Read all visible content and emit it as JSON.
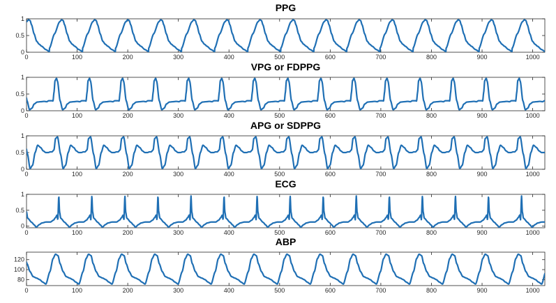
{
  "chart_data": [
    {
      "type": "line",
      "title": "PPG",
      "xlim": [
        0,
        1024
      ],
      "ylim": [
        0,
        1
      ],
      "xticks": [
        0,
        100,
        200,
        300,
        400,
        500,
        600,
        700,
        800,
        900,
        1000
      ],
      "yticks": [
        0,
        0.5,
        1
      ],
      "yticklabels": [
        "0",
        "0.5",
        "1"
      ],
      "series": [
        {
          "period": 65.3,
          "phase": 20,
          "x": [
            0,
            10,
            20,
            24,
            27,
            30,
            35,
            40,
            45,
            50,
            58,
            65.3
          ],
          "y": [
            0.12,
            0.55,
            0.91,
            0.97,
            0.95,
            0.82,
            0.55,
            0.33,
            0.24,
            0.18,
            0.08,
            0.02
          ]
        }
      ],
      "color": "#1f6fb4"
    },
    {
      "type": "line",
      "title": "VPG or FDPPG",
      "xlim": [
        0,
        1024
      ],
      "ylim": [
        0,
        1
      ],
      "xticks": [
        0,
        100,
        200,
        300,
        400,
        500,
        600,
        700,
        800,
        900,
        1000
      ],
      "yticks": [
        0,
        0.5,
        1
      ],
      "yticklabels": [
        "0",
        "0.5",
        "1"
      ],
      "series": [
        {
          "period": 65.3,
          "phase": 18,
          "x": [
            0,
            3,
            5,
            7,
            9,
            12,
            14,
            19,
            24,
            29,
            33,
            39,
            46,
            53,
            58,
            62,
            65.3
          ],
          "y": [
            0.3,
            0.3,
            0.29,
            0.55,
            0.9,
            0.97,
            0.88,
            0.3,
            0.03,
            0.08,
            0.2,
            0.26,
            0.27,
            0.28,
            0.27,
            0.3,
            0.3
          ]
        }
      ],
      "color": "#1f6fb4"
    },
    {
      "type": "line",
      "title": "APG or SDPPG",
      "xlim": [
        0,
        1024
      ],
      "ylim": [
        0,
        1
      ],
      "xticks": [
        0,
        100,
        200,
        300,
        400,
        500,
        600,
        700,
        800,
        900,
        1000
      ],
      "yticks": [
        0,
        0.5,
        1
      ],
      "yticklabels": [
        "0",
        "0.5",
        "1"
      ],
      "series": [
        {
          "period": 65.3,
          "phase": 15,
          "x": [
            0,
            4,
            7,
            11,
            17,
            22,
            27,
            32,
            37,
            43,
            48,
            53,
            58,
            62,
            65.3
          ],
          "y": [
            0.52,
            0.58,
            0.92,
            0.97,
            0.45,
            0.02,
            0.12,
            0.5,
            0.72,
            0.65,
            0.55,
            0.5,
            0.5,
            0.52,
            0.52
          ]
        }
      ],
      "color": "#1f6fb4"
    },
    {
      "type": "line",
      "title": "ECG",
      "xlim": [
        0,
        1024
      ],
      "ylim": [
        -0.05,
        1
      ],
      "xticks": [
        0,
        100,
        200,
        300,
        400,
        500,
        600,
        700,
        800,
        900,
        1000
      ],
      "yticks": [
        0,
        0.5,
        1
      ],
      "yticklabels": [
        "0",
        "0.5",
        "1"
      ],
      "series": [
        {
          "period": 65.3,
          "phase": 63,
          "x": [
            0,
            8,
            13,
            17,
            23,
            28,
            36,
            45,
            51,
            55,
            58,
            59.5,
            61.5,
            63,
            65.3
          ],
          "y": [
            0.25,
            0.12,
            0.04,
            -0.03,
            0.05,
            0.1,
            0.13,
            0.13,
            0.19,
            0.27,
            0.35,
            0.2,
            0.95,
            0.45,
            0.25
          ]
        }
      ],
      "color": "#1f6fb4"
    },
    {
      "type": "line",
      "title": "ABP",
      "xlim": [
        0,
        1024
      ],
      "ylim": [
        68,
        135
      ],
      "xticks": [
        0,
        100,
        200,
        300,
        400,
        500,
        600,
        700,
        800,
        900,
        1000
      ],
      "yticks": [
        80,
        100,
        120
      ],
      "yticklabels": [
        "80",
        "100",
        "120"
      ],
      "series": [
        {
          "period": 65.3,
          "phase": 27,
          "x": [
            0,
            8,
            14,
            19,
            24,
            28,
            34,
            40,
            47,
            53,
            59,
            65.3
          ],
          "y": [
            71,
            96,
            122,
            131,
            128,
            112,
            96,
            86,
            83,
            80,
            75,
            71
          ]
        }
      ],
      "color": "#1f6fb4"
    }
  ]
}
